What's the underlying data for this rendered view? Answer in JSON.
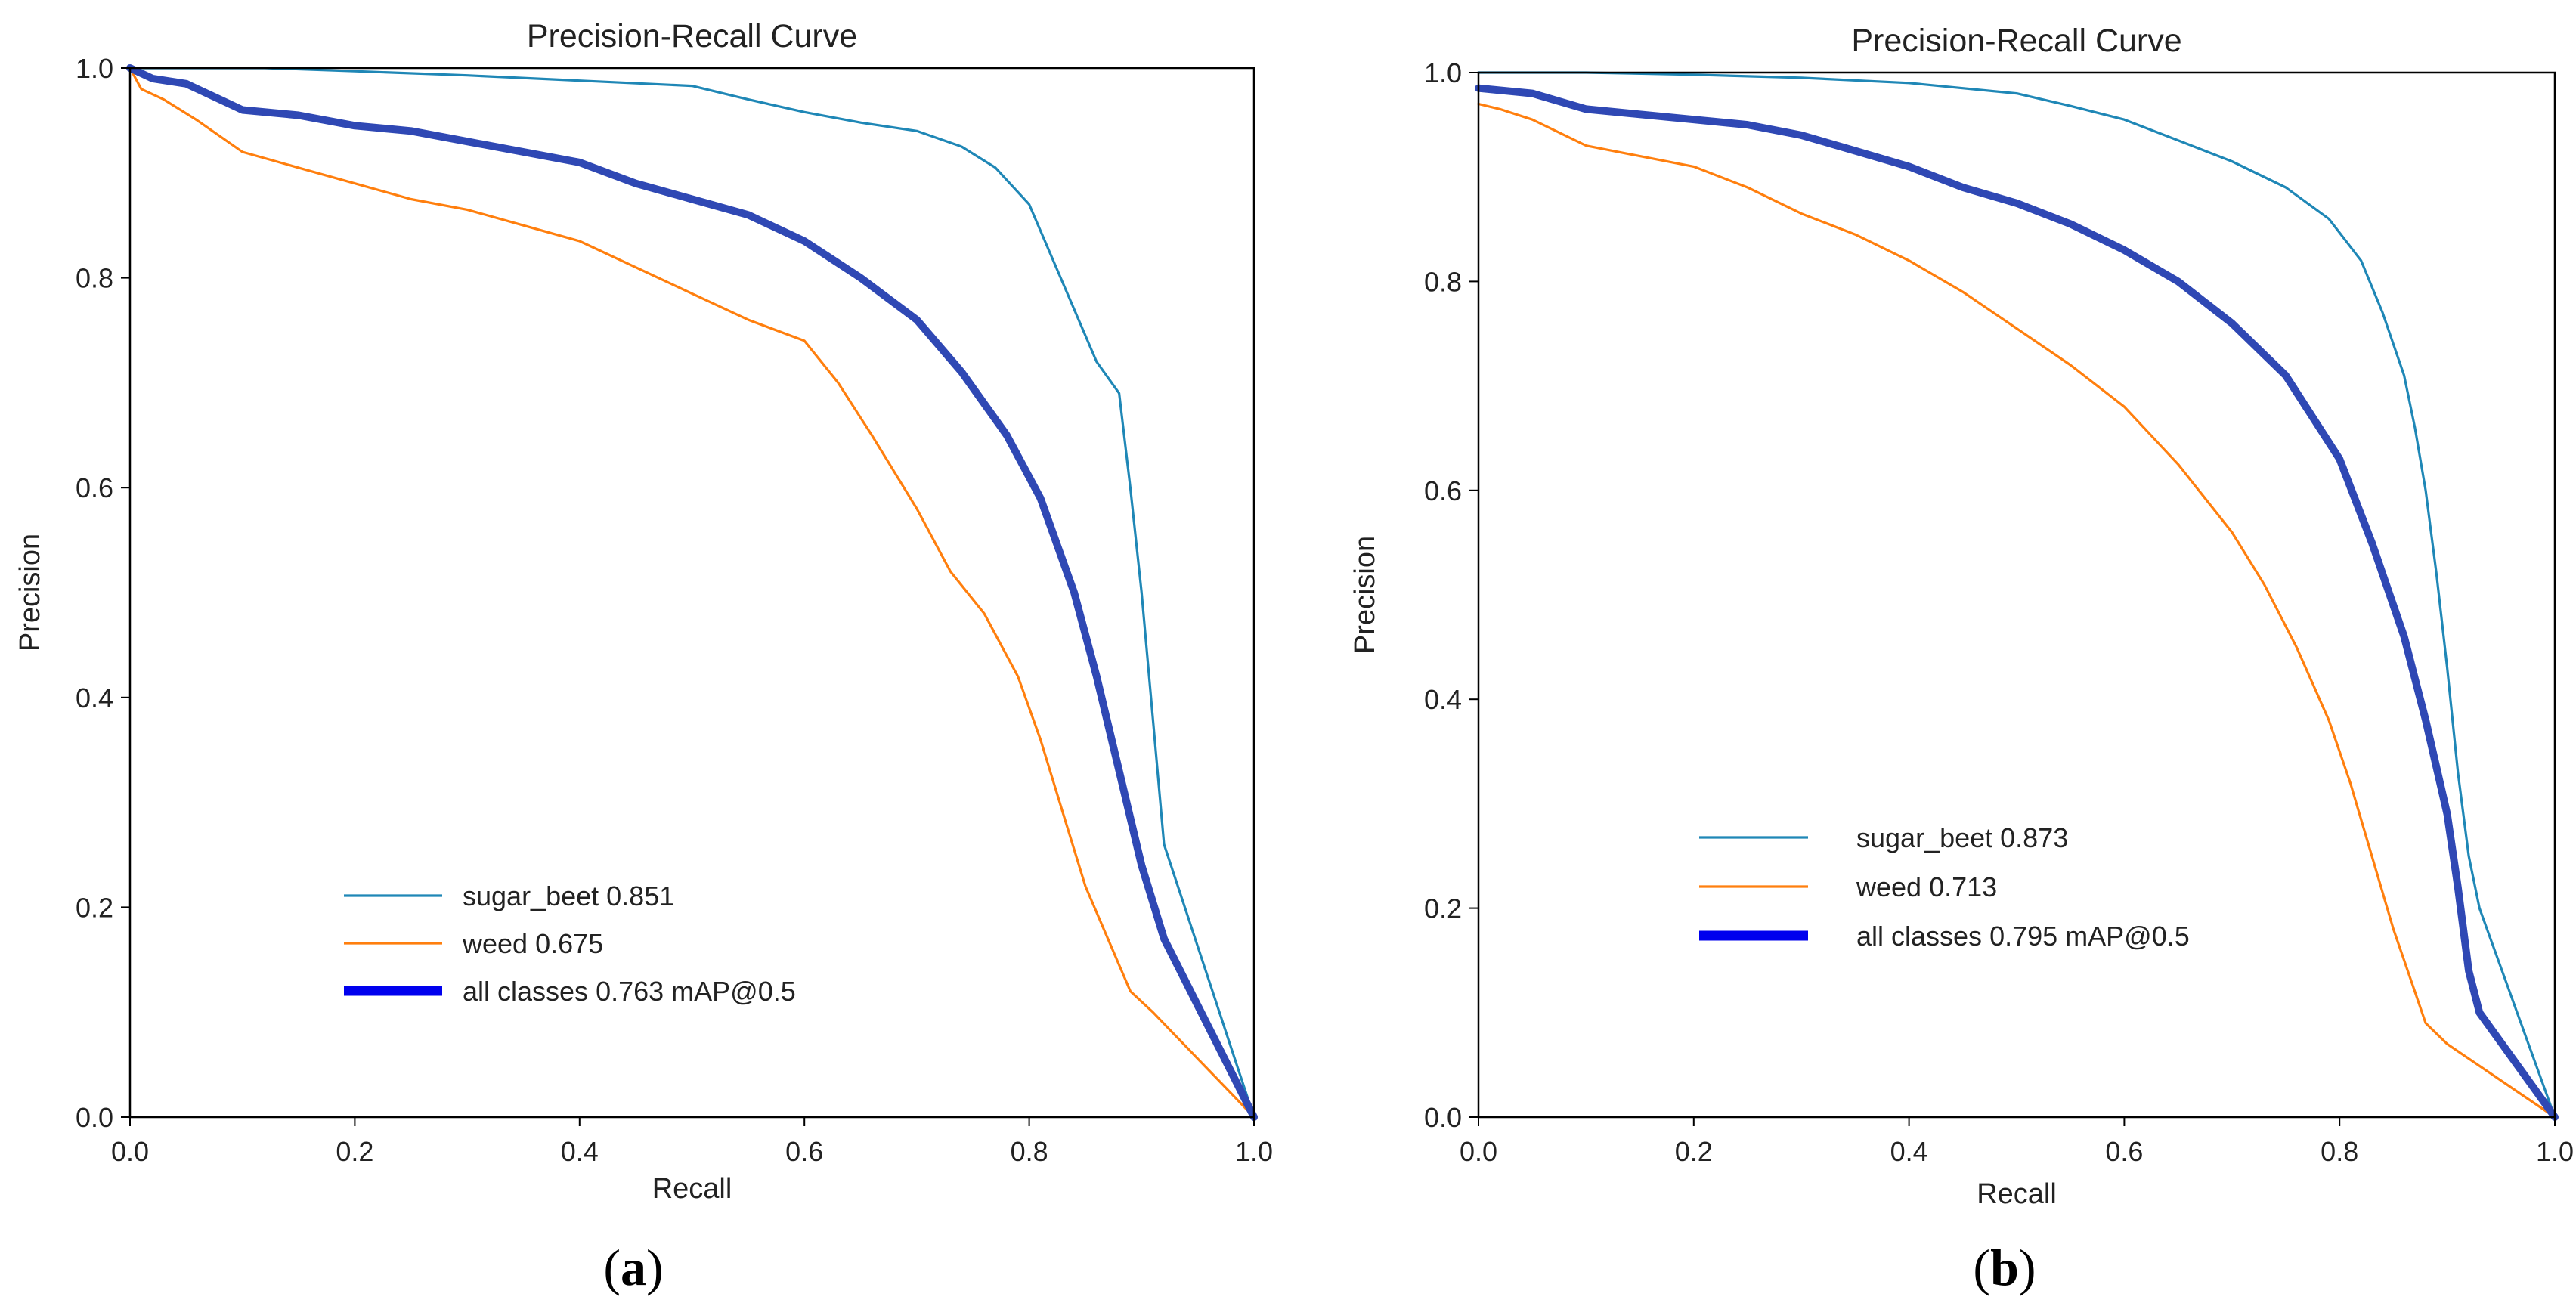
{
  "chart_data": [
    {
      "type": "line",
      "panel": "a",
      "caption_letter": "a",
      "title": "Precision-Recall Curve",
      "xlabel": "Recall",
      "ylabel": "Precision",
      "xlim": [
        0.0,
        1.0
      ],
      "ylim": [
        0.0,
        1.0
      ],
      "xticks": [
        "0.0",
        "0.2",
        "0.4",
        "0.6",
        "0.8",
        "1.0"
      ],
      "yticks": [
        "0.0",
        "0.2",
        "0.4",
        "0.6",
        "0.8",
        "1.0"
      ],
      "legend_position": "lower-left",
      "series": [
        {
          "name": "sugar_beet",
          "legend_label": "sugar_beet 0.851",
          "color": "#1f87b6",
          "x": [
            0.0,
            0.02,
            0.05,
            0.12,
            0.2,
            0.3,
            0.4,
            0.5,
            0.55,
            0.6,
            0.65,
            0.7,
            0.74,
            0.77,
            0.8,
            0.82,
            0.84,
            0.86,
            0.88,
            0.89,
            0.9,
            0.91,
            0.92,
            1.0
          ],
          "y": [
            1.0,
            1.0,
            1.0,
            1.0,
            0.997,
            0.993,
            0.988,
            0.983,
            0.97,
            0.958,
            0.948,
            0.94,
            0.925,
            0.905,
            0.87,
            0.82,
            0.77,
            0.72,
            0.69,
            0.6,
            0.5,
            0.38,
            0.26,
            0.0
          ]
        },
        {
          "name": "weed",
          "legend_label": "weed 0.675",
          "color": "#ff7f0e",
          "x": [
            0.0,
            0.01,
            0.03,
            0.06,
            0.1,
            0.15,
            0.2,
            0.25,
            0.3,
            0.35,
            0.4,
            0.45,
            0.5,
            0.55,
            0.6,
            0.63,
            0.66,
            0.7,
            0.73,
            0.76,
            0.79,
            0.81,
            0.83,
            0.85,
            0.87,
            0.89,
            0.91,
            1.0
          ],
          "y": [
            1.0,
            0.98,
            0.97,
            0.95,
            0.92,
            0.905,
            0.89,
            0.875,
            0.865,
            0.85,
            0.835,
            0.81,
            0.785,
            0.76,
            0.74,
            0.7,
            0.65,
            0.58,
            0.52,
            0.48,
            0.42,
            0.36,
            0.29,
            0.22,
            0.17,
            0.12,
            0.1,
            0.0
          ]
        },
        {
          "name": "all classes",
          "legend_label": "all classes 0.763 mAP@0.5",
          "color": "#2f48b4",
          "bold": true,
          "x": [
            0.0,
            0.02,
            0.05,
            0.1,
            0.15,
            0.2,
            0.25,
            0.3,
            0.35,
            0.4,
            0.45,
            0.5,
            0.55,
            0.6,
            0.65,
            0.7,
            0.74,
            0.78,
            0.81,
            0.84,
            0.86,
            0.88,
            0.9,
            0.92,
            1.0
          ],
          "y": [
            1.0,
            0.99,
            0.985,
            0.96,
            0.955,
            0.945,
            0.94,
            0.93,
            0.92,
            0.91,
            0.89,
            0.875,
            0.86,
            0.835,
            0.8,
            0.76,
            0.71,
            0.65,
            0.59,
            0.5,
            0.42,
            0.33,
            0.24,
            0.17,
            0.0
          ]
        }
      ]
    },
    {
      "type": "line",
      "panel": "b",
      "caption_letter": "b",
      "title": "Precision-Recall Curve",
      "xlabel": "Recall",
      "ylabel": "Precision",
      "xlim": [
        0.0,
        1.0
      ],
      "ylim": [
        0.0,
        1.0
      ],
      "xticks": [
        "0.0",
        "0.2",
        "0.4",
        "0.6",
        "0.8",
        "1.0"
      ],
      "yticks": [
        "0.0",
        "0.2",
        "0.4",
        "0.6",
        "0.8",
        "1.0"
      ],
      "legend_position": "lower-left",
      "series": [
        {
          "name": "sugar_beet",
          "legend_label": "sugar_beet 0.873",
          "color": "#1f87b6",
          "x": [
            0.0,
            0.05,
            0.1,
            0.2,
            0.3,
            0.4,
            0.5,
            0.55,
            0.6,
            0.65,
            0.7,
            0.75,
            0.79,
            0.82,
            0.84,
            0.86,
            0.87,
            0.88,
            0.89,
            0.9,
            0.91,
            0.92,
            0.93,
            1.0
          ],
          "y": [
            1.0,
            1.0,
            1.0,
            0.998,
            0.995,
            0.99,
            0.98,
            0.968,
            0.955,
            0.935,
            0.915,
            0.89,
            0.86,
            0.82,
            0.77,
            0.71,
            0.66,
            0.6,
            0.52,
            0.43,
            0.33,
            0.25,
            0.2,
            0.0
          ]
        },
        {
          "name": "weed",
          "legend_label": "weed 0.713",
          "color": "#ff7f0e",
          "x": [
            0.0,
            0.02,
            0.05,
            0.1,
            0.15,
            0.2,
            0.25,
            0.3,
            0.35,
            0.4,
            0.45,
            0.5,
            0.55,
            0.6,
            0.65,
            0.7,
            0.73,
            0.76,
            0.79,
            0.81,
            0.83,
            0.85,
            0.87,
            0.88,
            0.9,
            1.0
          ],
          "y": [
            0.97,
            0.965,
            0.955,
            0.93,
            0.92,
            0.91,
            0.89,
            0.865,
            0.845,
            0.82,
            0.79,
            0.755,
            0.72,
            0.68,
            0.625,
            0.56,
            0.51,
            0.45,
            0.38,
            0.32,
            0.25,
            0.18,
            0.12,
            0.09,
            0.07,
            0.0
          ]
        },
        {
          "name": "all classes",
          "legend_label": "all  classes  0.795  mAP@0.5",
          "color": "#2f48b4",
          "bold": true,
          "x": [
            0.0,
            0.05,
            0.1,
            0.15,
            0.2,
            0.25,
            0.3,
            0.35,
            0.4,
            0.45,
            0.5,
            0.55,
            0.6,
            0.65,
            0.7,
            0.75,
            0.8,
            0.83,
            0.86,
            0.88,
            0.9,
            0.91,
            0.92,
            0.93,
            1.0
          ],
          "y": [
            0.985,
            0.98,
            0.965,
            0.96,
            0.955,
            0.95,
            0.94,
            0.925,
            0.91,
            0.89,
            0.875,
            0.855,
            0.83,
            0.8,
            0.76,
            0.71,
            0.63,
            0.55,
            0.46,
            0.38,
            0.29,
            0.22,
            0.14,
            0.1,
            0.0
          ]
        }
      ]
    }
  ]
}
